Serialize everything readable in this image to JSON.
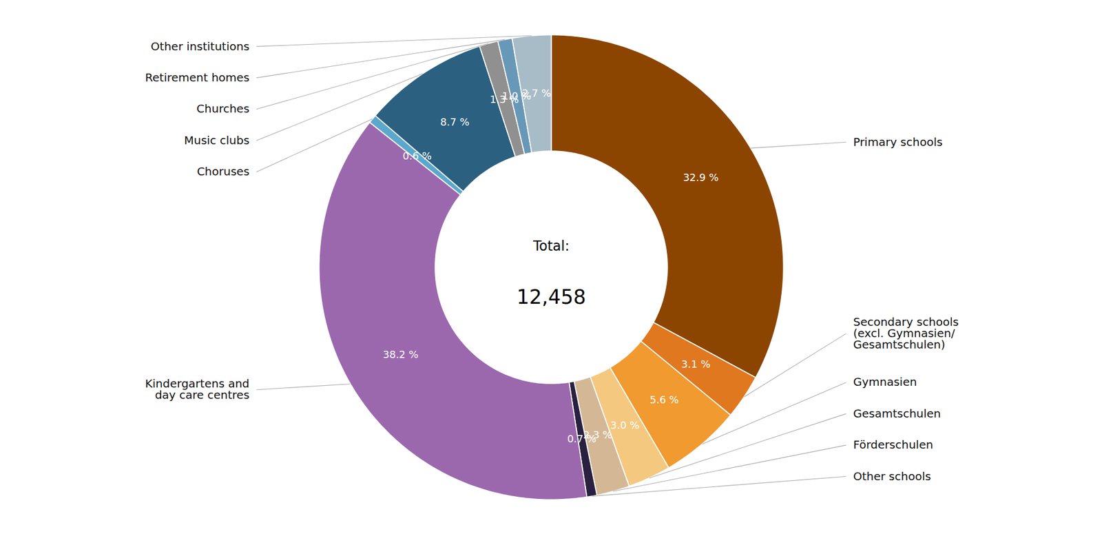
{
  "chart_data": {
    "type": "donut",
    "categories": [
      "Primary schools",
      "Secondary schools\n(excl. Gymnasien/\nGesamtschulen)",
      "Gymnasien",
      "Gesamtschulen",
      "Förderschulen",
      "Other schools",
      "Kindergartens and\nday care centres",
      "Choruses",
      "Music clubs",
      "Churches",
      "Retirement homes",
      "Other institutions"
    ],
    "values": [
      32.9,
      3.1,
      5.6,
      3.0,
      2.3,
      0.7,
      38.2,
      0.6,
      8.7,
      1.3,
      1.0,
      2.7
    ],
    "value_labels": [
      "32.9 %",
      "3.1 %",
      "5.6 %",
      "3.0 %",
      "2.3 %",
      "0.7 %",
      "38.2 %",
      "0.6 %",
      "8.7 %",
      "1.3 %",
      "1.0 %",
      "2.7 %"
    ],
    "colors": [
      "#8B4500",
      "#E07820",
      "#F09A30",
      "#F5C880",
      "#D4B896",
      "#2A2040",
      "#9B68AE",
      "#5BA8CC",
      "#2C6080",
      "#909090",
      "#6898B8",
      "#A8BCC8"
    ],
    "data_labels": true,
    "tick_labels": false,
    "annotations": [
      "Total:",
      "12,458"
    ]
  }
}
